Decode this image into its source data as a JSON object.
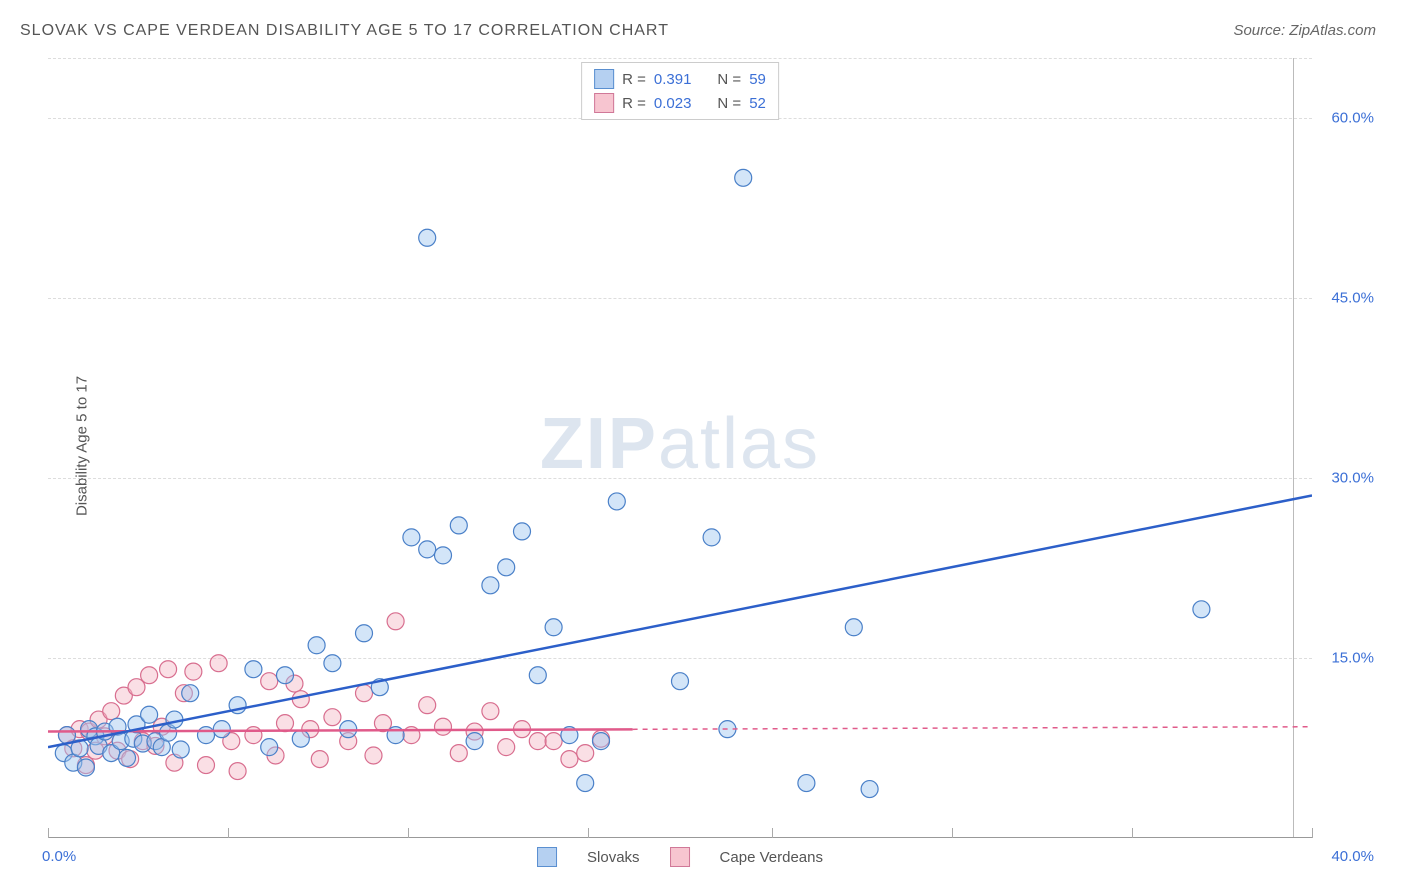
{
  "header": {
    "title": "SLOVAK VS CAPE VERDEAN DISABILITY AGE 5 TO 17 CORRELATION CHART",
    "source_label": "Source: ZipAtlas.com"
  },
  "y_axis": {
    "label": "Disability Age 5 to 17"
  },
  "watermark": {
    "zip": "ZIP",
    "atlas": "atlas"
  },
  "chart": {
    "type": "scatter",
    "x_range": [
      0,
      40
    ],
    "y_range": [
      0,
      65
    ],
    "x_origin_label": "0.0%",
    "x_max_label": "40.0%",
    "x_ticks": [
      0,
      5.7,
      11.4,
      17.1,
      22.9,
      28.6,
      34.3,
      40
    ],
    "y_ticks": [
      {
        "v": 15,
        "label": "15.0%"
      },
      {
        "v": 30,
        "label": "30.0%"
      },
      {
        "v": 45,
        "label": "45.0%"
      },
      {
        "v": 60,
        "label": "60.0%"
      }
    ],
    "gridlines_y": [
      15,
      30,
      45,
      60,
      65
    ],
    "colors": {
      "blue_fill": "#9ec5f0",
      "blue_stroke": "#4a80c8",
      "blue_trend": "#2c5fc9",
      "pink_fill": "#f4b7c6",
      "pink_stroke": "#d86e8f",
      "pink_trend": "#e05a8a",
      "grid": "#dddddd",
      "axis": "#999999",
      "tick_label": "#3b6fd6",
      "background": "#ffffff"
    },
    "marker_radius": 8.5,
    "series_a": {
      "name": "Slovaks",
      "color_key": "blue",
      "R": "0.391",
      "N": "59",
      "trend": {
        "x1": 0,
        "y1": 7.5,
        "x2": 40,
        "y2": 28.5,
        "solid_until_x": 40
      },
      "points": [
        [
          0.5,
          7.0
        ],
        [
          0.6,
          8.5
        ],
        [
          0.8,
          6.2
        ],
        [
          1.0,
          7.4
        ],
        [
          1.2,
          5.8
        ],
        [
          1.3,
          9.0
        ],
        [
          1.5,
          8.4
        ],
        [
          1.6,
          7.6
        ],
        [
          1.8,
          8.8
        ],
        [
          2.0,
          7.0
        ],
        [
          2.2,
          9.2
        ],
        [
          2.3,
          8.0
        ],
        [
          2.5,
          6.6
        ],
        [
          2.7,
          8.2
        ],
        [
          2.8,
          9.4
        ],
        [
          3.0,
          7.8
        ],
        [
          3.2,
          10.2
        ],
        [
          3.4,
          8.0
        ],
        [
          3.6,
          7.5
        ],
        [
          3.8,
          8.7
        ],
        [
          4.0,
          9.8
        ],
        [
          4.2,
          7.3
        ],
        [
          4.5,
          12.0
        ],
        [
          5.0,
          8.5
        ],
        [
          5.5,
          9.0
        ],
        [
          6.0,
          11.0
        ],
        [
          6.5,
          14.0
        ],
        [
          7.0,
          7.5
        ],
        [
          7.5,
          13.5
        ],
        [
          8.0,
          8.2
        ],
        [
          8.5,
          16.0
        ],
        [
          9.0,
          14.5
        ],
        [
          9.5,
          9.0
        ],
        [
          10.0,
          17.0
        ],
        [
          10.5,
          12.5
        ],
        [
          11.0,
          8.5
        ],
        [
          11.5,
          25.0
        ],
        [
          12.0,
          24.0
        ],
        [
          12.0,
          50.0
        ],
        [
          12.5,
          23.5
        ],
        [
          13.0,
          26.0
        ],
        [
          13.5,
          8.0
        ],
        [
          14.0,
          21.0
        ],
        [
          14.5,
          22.5
        ],
        [
          15.0,
          25.5
        ],
        [
          15.5,
          13.5
        ],
        [
          16.0,
          17.5
        ],
        [
          16.5,
          8.5
        ],
        [
          17.0,
          4.5
        ],
        [
          17.5,
          8.0
        ],
        [
          18.0,
          28.0
        ],
        [
          20.0,
          13.0
        ],
        [
          21.0,
          25.0
        ],
        [
          21.5,
          9.0
        ],
        [
          22.0,
          55.0
        ],
        [
          24.0,
          4.5
        ],
        [
          25.5,
          17.5
        ],
        [
          26.0,
          4.0
        ],
        [
          36.5,
          19.0
        ]
      ]
    },
    "series_b": {
      "name": "Cape Verdeans",
      "color_key": "pink",
      "R": "0.023",
      "N": "52",
      "trend": {
        "x1": 0,
        "y1": 8.8,
        "x2": 40,
        "y2": 9.2,
        "solid_until_x": 18.5
      },
      "points": [
        [
          0.6,
          8.5
        ],
        [
          0.8,
          7.4
        ],
        [
          1.0,
          9.0
        ],
        [
          1.2,
          6.0
        ],
        [
          1.3,
          8.8
        ],
        [
          1.5,
          7.2
        ],
        [
          1.6,
          9.8
        ],
        [
          1.8,
          8.4
        ],
        [
          2.0,
          10.5
        ],
        [
          2.2,
          7.2
        ],
        [
          2.4,
          11.8
        ],
        [
          2.6,
          6.5
        ],
        [
          2.8,
          12.5
        ],
        [
          3.0,
          8.0
        ],
        [
          3.2,
          13.5
        ],
        [
          3.4,
          7.6
        ],
        [
          3.6,
          9.2
        ],
        [
          3.8,
          14.0
        ],
        [
          4.0,
          6.2
        ],
        [
          4.3,
          12.0
        ],
        [
          4.6,
          13.8
        ],
        [
          5.0,
          6.0
        ],
        [
          5.4,
          14.5
        ],
        [
          5.8,
          8.0
        ],
        [
          6.0,
          5.5
        ],
        [
          6.5,
          8.5
        ],
        [
          7.0,
          13.0
        ],
        [
          7.2,
          6.8
        ],
        [
          7.5,
          9.5
        ],
        [
          7.8,
          12.8
        ],
        [
          8.0,
          11.5
        ],
        [
          8.3,
          9.0
        ],
        [
          8.6,
          6.5
        ],
        [
          9.0,
          10.0
        ],
        [
          9.5,
          8.0
        ],
        [
          10.0,
          12.0
        ],
        [
          10.3,
          6.8
        ],
        [
          10.6,
          9.5
        ],
        [
          11.0,
          18.0
        ],
        [
          11.5,
          8.5
        ],
        [
          12.0,
          11.0
        ],
        [
          12.5,
          9.2
        ],
        [
          13.0,
          7.0
        ],
        [
          13.5,
          8.8
        ],
        [
          14.0,
          10.5
        ],
        [
          14.5,
          7.5
        ],
        [
          15.0,
          9.0
        ],
        [
          15.5,
          8.0
        ],
        [
          16.0,
          8.0
        ],
        [
          16.5,
          6.5
        ],
        [
          17.0,
          7.0
        ],
        [
          17.5,
          8.2
        ]
      ]
    }
  },
  "legend": {
    "r_prefix": "R = ",
    "n_prefix": "N = "
  },
  "bottom_legend": {
    "a": "Slovaks",
    "b": "Cape Verdeans"
  }
}
